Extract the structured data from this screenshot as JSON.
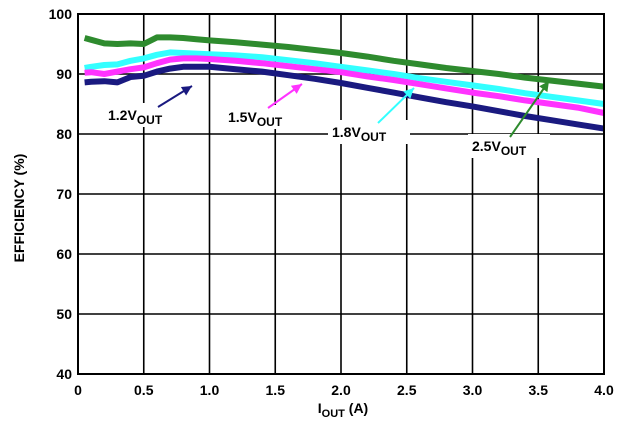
{
  "chart_data": {
    "type": "line",
    "title": "",
    "xlabel": {
      "main": "I",
      "sub": "OUT",
      "suffix": " (A)"
    },
    "ylabel": "EFFICIENCY (%)",
    "xlim": [
      0,
      4.0
    ],
    "ylim": [
      40,
      100
    ],
    "xticks": [
      "0",
      "0.5",
      "1.0",
      "1.5",
      "2.0",
      "2.5",
      "3.0",
      "3.5",
      "4.0"
    ],
    "xtick_values": [
      0,
      0.5,
      1.0,
      1.5,
      2.0,
      2.5,
      3.0,
      3.5,
      4.0
    ],
    "yticks": [
      "40",
      "50",
      "60",
      "70",
      "80",
      "90",
      "100"
    ],
    "ytick_values": [
      40,
      50,
      60,
      70,
      80,
      90,
      100
    ],
    "grid": true,
    "series": [
      {
        "label_main": "2.5V",
        "label_sub": "OUT",
        "color": "#2e8b2e",
        "x": [
          0.05,
          0.1,
          0.2,
          0.3,
          0.4,
          0.5,
          0.6,
          0.7,
          0.8,
          0.9,
          1.0,
          1.2,
          1.4,
          1.6,
          1.8,
          2.0,
          2.2,
          2.4,
          2.6,
          2.8,
          3.0,
          3.2,
          3.4,
          3.6,
          3.8,
          4.0
        ],
        "y": [
          96.0,
          95.7,
          95.1,
          95.0,
          95.1,
          95.0,
          96.1,
          96.1,
          96.0,
          95.8,
          95.6,
          95.3,
          94.9,
          94.5,
          94.0,
          93.5,
          92.9,
          92.2,
          91.6,
          91.0,
          90.5,
          90.0,
          89.4,
          88.9,
          88.4,
          87.9
        ]
      },
      {
        "label_main": "1.8V",
        "label_sub": "OUT",
        "color": "#33ffff",
        "x": [
          0.05,
          0.1,
          0.2,
          0.3,
          0.4,
          0.5,
          0.6,
          0.7,
          0.8,
          0.9,
          1.0,
          1.2,
          1.4,
          1.6,
          1.8,
          2.0,
          2.2,
          2.4,
          2.6,
          2.8,
          3.0,
          3.2,
          3.4,
          3.6,
          3.8,
          4.0
        ],
        "y": [
          91.0,
          91.2,
          91.5,
          91.6,
          92.2,
          92.6,
          93.2,
          93.6,
          93.5,
          93.4,
          93.3,
          93.1,
          92.8,
          92.3,
          91.8,
          91.2,
          90.6,
          90.0,
          89.3,
          88.7,
          88.1,
          87.5,
          86.8,
          86.2,
          85.6,
          85.0
        ]
      },
      {
        "label_main": "1.5V",
        "label_sub": "OUT",
        "color": "#ff33ff",
        "x": [
          0.05,
          0.1,
          0.2,
          0.3,
          0.4,
          0.5,
          0.6,
          0.7,
          0.8,
          0.9,
          1.0,
          1.2,
          1.4,
          1.6,
          1.8,
          2.0,
          2.2,
          2.4,
          2.6,
          2.8,
          3.0,
          3.2,
          3.4,
          3.6,
          3.8,
          4.0
        ],
        "y": [
          90.2,
          90.3,
          90.0,
          90.4,
          90.8,
          91.1,
          91.8,
          92.4,
          92.6,
          92.6,
          92.5,
          92.2,
          91.8,
          91.3,
          90.8,
          90.3,
          89.6,
          89.0,
          88.3,
          87.6,
          86.9,
          86.3,
          85.6,
          85.0,
          84.4,
          83.5
        ]
      },
      {
        "label_main": "1.2V",
        "label_sub": "OUT",
        "color": "#1a1a80",
        "x": [
          0.05,
          0.1,
          0.2,
          0.3,
          0.4,
          0.5,
          0.6,
          0.7,
          0.8,
          0.9,
          1.0,
          1.2,
          1.4,
          1.6,
          1.8,
          2.0,
          2.2,
          2.4,
          2.6,
          2.8,
          3.0,
          3.2,
          3.4,
          3.6,
          3.8,
          4.0
        ],
        "y": [
          88.6,
          88.7,
          88.8,
          88.6,
          89.5,
          89.7,
          90.4,
          90.9,
          91.2,
          91.2,
          91.2,
          90.8,
          90.4,
          89.8,
          89.2,
          88.5,
          87.7,
          86.9,
          86.1,
          85.3,
          84.6,
          83.8,
          83.0,
          82.3,
          81.6,
          80.9
        ]
      }
    ]
  }
}
